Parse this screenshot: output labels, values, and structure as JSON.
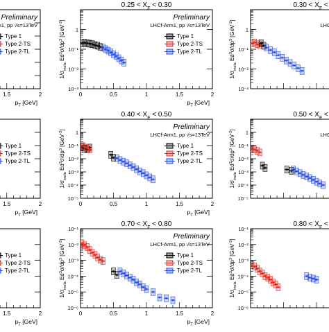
{
  "legend_labels": [
    "Type 1",
    "Type 2-TS",
    "Type 2-TL"
  ],
  "colors": {
    "type1": "#000000",
    "type2ts": "#e8281e",
    "type2tl": "#2a4fe0",
    "axis": "#000000"
  },
  "experiment_label": "LHCf-Arm1, pp",
  "energy_label": "=13TeV",
  "preliminary_label": "Preliminary",
  "x_axis_label": "p_T [GeV]",
  "y_axis_label": "1/σ_inela Ed³σ/dp³ [GeV⁻²]",
  "chart_data": [
    {
      "id": "p11",
      "title": "",
      "xlim": [
        0,
        2
      ],
      "xticks": [
        "1.5",
        "2"
      ],
      "log_y": true,
      "ylim_exp": [
        -5,
        1
      ],
      "y_ticks": [],
      "show_prelim": true,
      "show_legend": true,
      "truncated_left": true,
      "series": []
    },
    {
      "id": "p12",
      "title": "0.25 < X_F < 0.30",
      "xlim": [
        0,
        2
      ],
      "xticks": [
        "0",
        "0.5",
        "1",
        "1.5",
        "2"
      ],
      "log_y": true,
      "ylim_exp": [
        -3,
        1
      ],
      "y_ticks": [
        "10⁻³",
        "10⁻²",
        "10⁻¹",
        "1"
      ],
      "show_prelim": true,
      "show_legend": true,
      "truncated_left": false,
      "series": [
        {
          "type": "type1",
          "points": [
            [
              0.02,
              0.2
            ],
            [
              0.06,
              0.21
            ],
            [
              0.1,
              0.2
            ],
            [
              0.14,
              0.19
            ],
            [
              0.18,
              0.18
            ],
            [
              0.22,
              0.16
            ],
            [
              0.26,
              0.15
            ],
            [
              0.3,
              0.13
            ]
          ]
        },
        {
          "type": "type2tl",
          "points": [
            [
              0.34,
              0.12
            ],
            [
              0.38,
              0.1
            ],
            [
              0.42,
              0.085
            ],
            [
              0.46,
              0.07
            ],
            [
              0.5,
              0.055
            ],
            [
              0.54,
              0.045
            ],
            [
              0.58,
              0.035
            ],
            [
              0.62,
              0.027
            ],
            [
              0.66,
              0.021
            ]
          ]
        }
      ]
    },
    {
      "id": "p13",
      "title": "0.30 < X_F < 0.3",
      "xlim": [
        0,
        2
      ],
      "xticks": [],
      "log_y": true,
      "ylim_exp": [
        -3,
        1
      ],
      "y_ticks": [
        "10⁻³",
        "10⁻²",
        "10⁻¹",
        "1"
      ],
      "show_prelim": true,
      "show_legend": false,
      "truncated_left": false,
      "series": [
        {
          "type": "type2ts",
          "points": [
            [
              0.02,
              0.2
            ],
            [
              0.06,
              0.22
            ],
            [
              0.1,
              0.18
            ],
            [
              0.14,
              0.16
            ]
          ]
        },
        {
          "type": "type1",
          "points": [
            [
              0.16,
              0.2
            ],
            [
              0.2,
              0.15
            ]
          ]
        },
        {
          "type": "type2tl",
          "points": [
            [
              0.24,
              0.12
            ],
            [
              0.3,
              0.09
            ],
            [
              0.36,
              0.07
            ],
            [
              0.42,
              0.05
            ],
            [
              0.48,
              0.037
            ],
            [
              0.54,
              0.027
            ],
            [
              0.6,
              0.02
            ],
            [
              0.66,
              0.015
            ],
            [
              0.72,
              0.011
            ],
            [
              0.78,
              0.008
            ]
          ]
        }
      ]
    },
    {
      "id": "p21",
      "title": "",
      "xlim": [
        0,
        2
      ],
      "xticks": [
        "1.5",
        "2"
      ],
      "log_y": true,
      "ylim_exp": [
        -5,
        1
      ],
      "y_ticks": [],
      "show_prelim": false,
      "show_legend": true,
      "truncated_left": true,
      "series": []
    },
    {
      "id": "p22",
      "title": "0.40 < X_F < 0.50",
      "xlim": [
        0,
        2
      ],
      "xticks": [
        "0",
        "0.5",
        "1",
        "1.5",
        "2"
      ],
      "log_y": true,
      "ylim_exp": [
        -5,
        1
      ],
      "y_ticks": [
        "10⁻⁵",
        "10⁻⁴",
        "10⁻³",
        "10⁻²",
        "10⁻¹",
        "1"
      ],
      "show_prelim": true,
      "show_legend": true,
      "truncated_left": false,
      "series": [
        {
          "type": "type1",
          "points": [
            [
              0.02,
              0.08
            ],
            [
              0.06,
              0.06
            ],
            [
              0.1,
              0.05
            ],
            [
              0.14,
              0.07
            ],
            [
              0.46,
              0.02
            ],
            [
              0.5,
              0.012
            ]
          ]
        },
        {
          "type": "type2ts",
          "points": [
            [
              0.04,
              0.09
            ],
            [
              0.09,
              0.07
            ],
            [
              0.14,
              0.05
            ]
          ]
        },
        {
          "type": "type2tl",
          "points": [
            [
              0.55,
              0.011
            ],
            [
              0.6,
              0.008
            ],
            [
              0.65,
              0.006
            ],
            [
              0.7,
              0.0045
            ],
            [
              0.75,
              0.0032
            ],
            [
              0.8,
              0.0023
            ],
            [
              0.85,
              0.0016
            ],
            [
              0.9,
              0.0011
            ],
            [
              0.95,
              0.0008
            ],
            [
              1.0,
              0.00055
            ],
            [
              1.05,
              0.00038
            ],
            [
              1.1,
              0.00027
            ]
          ]
        }
      ]
    },
    {
      "id": "p23",
      "title": "0.50 < X_F < 0.6",
      "xlim": [
        0,
        2
      ],
      "xticks": [],
      "log_y": true,
      "ylim_exp": [
        -5,
        1
      ],
      "y_ticks": [
        "10⁻⁵",
        "10⁻⁴",
        "10⁻³",
        "10⁻²",
        "10⁻¹",
        "1"
      ],
      "show_prelim": true,
      "show_legend": false,
      "truncated_left": false,
      "series": [
        {
          "type": "type2ts",
          "points": [
            [
              0.02,
              0.06
            ],
            [
              0.06,
              0.05
            ],
            [
              0.1,
              0.04
            ],
            [
              0.14,
              0.03
            ]
          ]
        },
        {
          "type": "type1",
          "points": [
            [
              0.18,
              0.003
            ],
            [
              0.22,
              0.002
            ],
            [
              0.55,
              0.0015
            ],
            [
              0.62,
              0.0012
            ]
          ]
        },
        {
          "type": "type2tl",
          "points": [
            [
              0.65,
              0.0015
            ],
            [
              0.7,
              0.0011
            ],
            [
              0.75,
              0.0008
            ],
            [
              0.8,
              0.0006
            ],
            [
              0.85,
              0.00045
            ],
            [
              0.9,
              0.00034
            ],
            [
              0.95,
              0.00025
            ],
            [
              1.0,
              0.00018
            ],
            [
              1.05,
              0.00013
            ],
            [
              1.1,
              0.0001
            ]
          ]
        }
      ]
    },
    {
      "id": "p31",
      "title": "",
      "xlim": [
        0,
        2
      ],
      "xticks": [
        "1.5",
        "2"
      ],
      "log_y": true,
      "ylim_exp": [
        -6,
        -1
      ],
      "y_ticks": [],
      "show_prelim": false,
      "show_legend": true,
      "truncated_left": true,
      "series": []
    },
    {
      "id": "p32",
      "title": "0.70 < X_F < 0.80",
      "xlim": [
        0,
        2
      ],
      "xticks": [
        "0",
        "0.5",
        "1",
        "1.5",
        "2"
      ],
      "log_y": true,
      "ylim_exp": [
        -6,
        -1
      ],
      "y_ticks": [
        "10⁻⁶",
        "10⁻⁵",
        "10⁻⁴",
        "10⁻³",
        "10⁻²",
        "10⁻¹"
      ],
      "show_prelim": true,
      "show_legend": true,
      "truncated_left": false,
      "series": [
        {
          "type": "type2ts",
          "points": [
            [
              0.02,
              0.012
            ],
            [
              0.06,
              0.009
            ],
            [
              0.1,
              0.007
            ],
            [
              0.14,
              0.0045
            ],
            [
              0.18,
              0.003
            ],
            [
              0.22,
              0.0022
            ],
            [
              0.26,
              0.0015
            ],
            [
              0.3,
              0.0011
            ],
            [
              0.34,
              0.0009
            ]
          ]
        },
        {
          "type": "type1",
          "points": [
            [
              0.5,
              0.0002
            ],
            [
              0.55,
              0.00012
            ]
          ]
        },
        {
          "type": "type2tl",
          "points": [
            [
              0.6,
              0.0002
            ],
            [
              0.65,
              0.00015
            ],
            [
              0.7,
              0.00011
            ],
            [
              0.75,
              8e-05
            ],
            [
              0.8,
              6e-05
            ],
            [
              0.85,
              4e-05
            ],
            [
              0.9,
              3e-05
            ],
            [
              0.95,
              2e-05
            ],
            [
              1.0,
              1.5e-05
            ],
            [
              1.1,
              1e-05
            ],
            [
              1.2,
              4.5e-06
            ],
            [
              1.3,
              4e-06
            ],
            [
              1.4,
              3e-06
            ]
          ]
        }
      ]
    },
    {
      "id": "p33",
      "title": "0.80 < X_F < 0.9",
      "xlim": [
        0,
        2
      ],
      "xticks": [],
      "log_y": true,
      "ylim_exp": [
        -6,
        -1
      ],
      "y_ticks": [
        "10⁻⁶",
        "10⁻⁵",
        "10⁻⁴",
        "10⁻³",
        "10⁻²",
        "10⁻¹"
      ],
      "show_prelim": false,
      "show_legend": false,
      "truncated_left": false,
      "series": [
        {
          "type": "type2ts",
          "points": [
            [
              0.02,
              0.0005
            ],
            [
              0.06,
              0.0004
            ],
            [
              0.1,
              0.0003
            ],
            [
              0.14,
              0.0002
            ],
            [
              0.18,
              0.00015
            ],
            [
              0.22,
              0.0001
            ],
            [
              0.26,
              8e-05
            ],
            [
              0.3,
              6e-05
            ],
            [
              0.34,
              4e-05
            ],
            [
              0.38,
              3e-05
            ],
            [
              0.42,
              2e-05
            ]
          ]
        },
        {
          "type": "type2tl",
          "points": [
            [
              0.85,
              0.0001
            ],
            [
              0.9,
              8e-05
            ],
            [
              0.95,
              7e-05
            ],
            [
              1.0,
              6e-05
            ]
          ]
        }
      ]
    }
  ]
}
